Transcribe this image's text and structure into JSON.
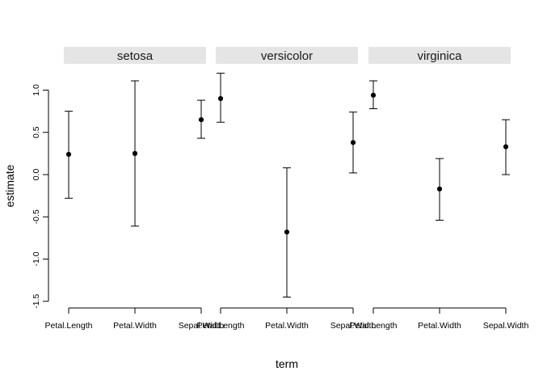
{
  "chart_data": {
    "type": "scatter",
    "xlabel": "term",
    "ylabel": "estimate",
    "ylim": [
      -1.5,
      1.0
    ],
    "y_ticks": [
      -1.5,
      -1.0,
      -0.5,
      0.0,
      0.5,
      1.0
    ],
    "y_tick_labels": [
      "-1.5",
      "-1.0",
      "-0.5",
      "0.0",
      "0.5",
      "1.0"
    ],
    "categories": [
      "Petal.Length",
      "Petal.Width",
      "Sepal.Width"
    ],
    "facets": [
      {
        "label": "setosa",
        "points": [
          {
            "term": "Petal.Length",
            "estimate": 0.24,
            "lower": -0.28,
            "upper": 0.75
          },
          {
            "term": "Petal.Width",
            "estimate": 0.25,
            "lower": -0.61,
            "upper": 1.11
          },
          {
            "term": "Sepal.Width",
            "estimate": 0.65,
            "lower": 0.43,
            "upper": 0.88
          }
        ]
      },
      {
        "label": "versicolor",
        "points": [
          {
            "term": "Petal.Length",
            "estimate": 0.9,
            "lower": 0.62,
            "upper": 1.2
          },
          {
            "term": "Petal.Width",
            "estimate": -0.68,
            "lower": -1.45,
            "upper": 0.08
          },
          {
            "term": "Sepal.Width",
            "estimate": 0.38,
            "lower": 0.02,
            "upper": 0.74
          }
        ]
      },
      {
        "label": "virginica",
        "points": [
          {
            "term": "Petal.Length",
            "estimate": 0.94,
            "lower": 0.78,
            "upper": 1.11
          },
          {
            "term": "Petal.Width",
            "estimate": -0.17,
            "lower": -0.54,
            "upper": 0.19
          },
          {
            "term": "Sepal.Width",
            "estimate": 0.33,
            "lower": 0.0,
            "upper": 0.65
          }
        ]
      }
    ]
  }
}
